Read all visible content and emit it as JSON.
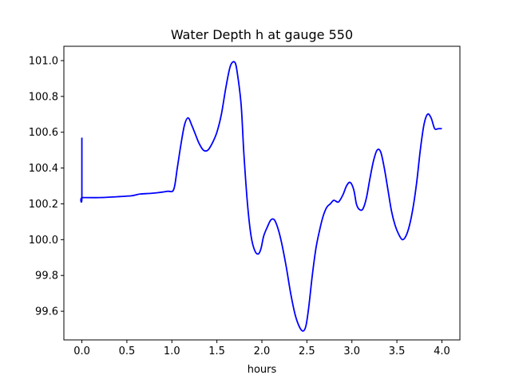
{
  "chart_data": {
    "type": "line",
    "title": "Water Depth h at gauge 550",
    "xlabel": "hours",
    "ylabel": "",
    "xlim": [
      -0.2,
      4.2
    ],
    "ylim": [
      99.44,
      101.08
    ],
    "grid": false,
    "xticks": [
      0.0,
      0.5,
      1.0,
      1.5,
      2.0,
      2.5,
      3.0,
      3.5,
      4.0
    ],
    "xtick_labels": [
      "0.0",
      "0.5",
      "1.0",
      "1.5",
      "2.0",
      "2.5",
      "3.0",
      "3.5",
      "4.0"
    ],
    "yticks": [
      99.6,
      99.8,
      100.0,
      100.2,
      100.4,
      100.6,
      100.8,
      101.0
    ],
    "ytick_labels": [
      "99.6",
      "99.8",
      "100.0",
      "100.2",
      "100.4",
      "100.6",
      "100.8",
      "101.0"
    ],
    "series": [
      {
        "color": "#0000ff",
        "x": [
          0.0,
          0.0,
          0.005,
          0.2,
          0.4,
          0.55,
          0.6,
          0.65,
          0.8,
          0.95,
          1.02,
          1.06,
          1.1,
          1.14,
          1.18,
          1.22,
          1.26,
          1.3,
          1.35,
          1.4,
          1.45,
          1.5,
          1.55,
          1.6,
          1.65,
          1.7,
          1.73,
          1.77,
          1.8,
          1.84,
          1.88,
          1.92,
          1.96,
          1.99,
          2.02,
          2.06,
          2.1,
          2.14,
          2.18,
          2.22,
          2.27,
          2.32,
          2.37,
          2.42,
          2.46,
          2.49,
          2.52,
          2.56,
          2.6,
          2.64,
          2.68,
          2.72,
          2.76,
          2.8,
          2.85,
          2.9,
          2.94,
          2.98,
          3.02,
          3.05,
          3.08,
          3.12,
          3.16,
          3.2,
          3.24,
          3.28,
          3.32,
          3.36,
          3.4,
          3.44,
          3.48,
          3.52,
          3.56,
          3.6,
          3.64,
          3.68,
          3.72,
          3.76,
          3.8,
          3.84,
          3.88,
          3.92,
          3.96,
          4.0
        ],
        "y": [
          100.57,
          100.235,
          100.235,
          100.235,
          100.24,
          100.245,
          100.25,
          100.255,
          100.26,
          100.27,
          100.28,
          100.4,
          100.53,
          100.64,
          100.68,
          100.64,
          100.59,
          100.54,
          100.5,
          100.5,
          100.54,
          100.6,
          100.7,
          100.85,
          100.97,
          100.99,
          100.92,
          100.75,
          100.48,
          100.2,
          100.02,
          99.94,
          99.92,
          99.95,
          100.02,
          100.07,
          100.11,
          100.11,
          100.06,
          99.98,
          99.85,
          99.7,
          99.58,
          99.51,
          99.49,
          99.52,
          99.62,
          99.8,
          99.95,
          100.05,
          100.13,
          100.18,
          100.2,
          100.22,
          100.21,
          100.25,
          100.3,
          100.32,
          100.28,
          100.2,
          100.17,
          100.17,
          100.23,
          100.34,
          100.44,
          100.5,
          100.49,
          100.4,
          100.28,
          100.16,
          100.08,
          100.03,
          100.0,
          100.02,
          100.08,
          100.18,
          100.32,
          100.5,
          100.64,
          100.7,
          100.68,
          100.62,
          100.62,
          100.62
        ]
      }
    ]
  }
}
